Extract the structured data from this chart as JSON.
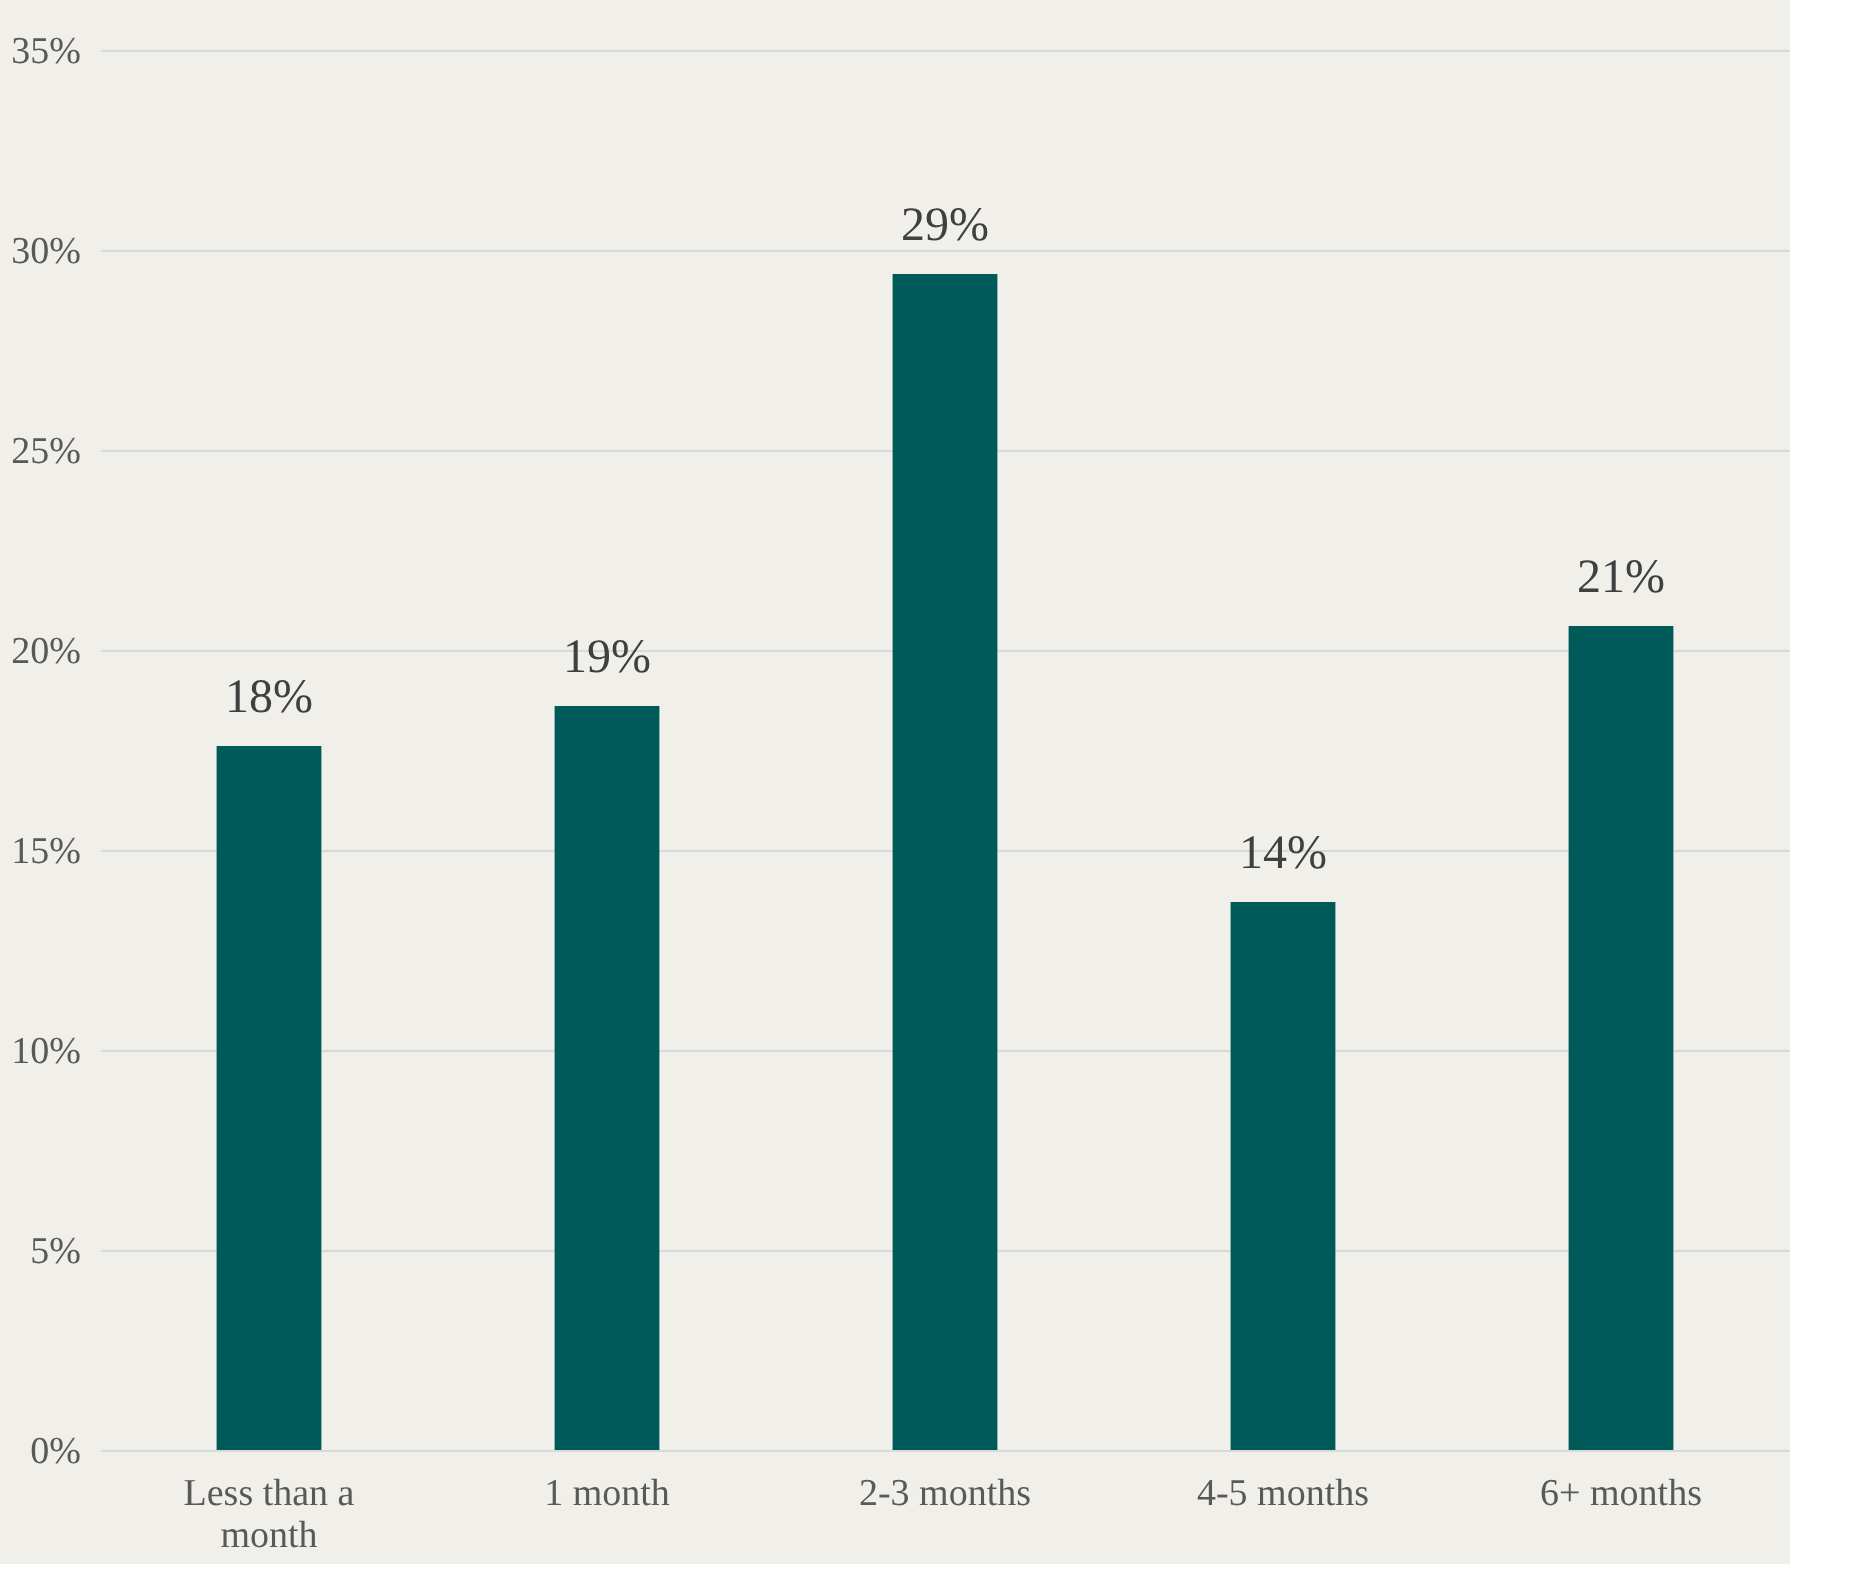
{
  "chart_data": {
    "type": "bar",
    "categories": [
      "Less than a month",
      "1 month",
      "2-3 months",
      "4-5 months",
      "6+ months"
    ],
    "values": [
      17.6,
      18.6,
      29.4,
      13.7,
      20.6
    ],
    "value_labels": [
      "18%",
      "19%",
      "29%",
      "14%",
      "21%"
    ],
    "color": "#005a5a",
    "ylim": [
      0,
      35
    ],
    "yticks": [
      {
        "value": 0,
        "label": "0%"
      },
      {
        "value": 5,
        "label": "5%"
      },
      {
        "value": 10,
        "label": "10%"
      },
      {
        "value": 15,
        "label": "15%"
      },
      {
        "value": 20,
        "label": "20%"
      },
      {
        "value": 25,
        "label": "25%"
      },
      {
        "value": 30,
        "label": "30%"
      },
      {
        "value": 35,
        "label": "35%"
      }
    ],
    "grid": "y"
  }
}
